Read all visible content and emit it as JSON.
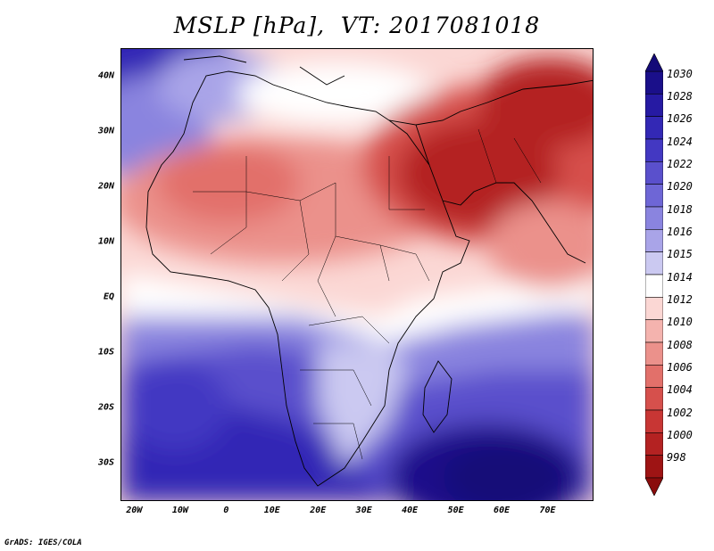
{
  "title": "MSLP [hPa],  VT: 2017081018",
  "credit": "GrADS: IGES/COLA",
  "map": {
    "variable": "MSLP",
    "units": "hPa",
    "valid_time": "2017081018",
    "lon_range": [
      -23,
      80
    ],
    "lat_range": [
      -37,
      45
    ],
    "lat_ticks": [
      {
        "value": 40,
        "label": "40N"
      },
      {
        "value": 30,
        "label": "30N"
      },
      {
        "value": 20,
        "label": "20N"
      },
      {
        "value": 10,
        "label": "10N"
      },
      {
        "value": 0,
        "label": "EQ"
      },
      {
        "value": -10,
        "label": "10S"
      },
      {
        "value": -20,
        "label": "20S"
      },
      {
        "value": -30,
        "label": "30S"
      }
    ],
    "lon_ticks": [
      {
        "value": -20,
        "label": "20W"
      },
      {
        "value": -10,
        "label": "10W"
      },
      {
        "value": 0,
        "label": "0"
      },
      {
        "value": 10,
        "label": "10E"
      },
      {
        "value": 20,
        "label": "20E"
      },
      {
        "value": 30,
        "label": "30E"
      },
      {
        "value": 40,
        "label": "40E"
      },
      {
        "value": 50,
        "label": "50E"
      },
      {
        "value": 60,
        "label": "60E"
      },
      {
        "value": 70,
        "label": "70E"
      }
    ]
  },
  "colorbar": {
    "levels": [
      {
        "label": "1030",
        "color": "#1a0f8a"
      },
      {
        "label": "1028",
        "color": "#261aa3"
      },
      {
        "label": "1026",
        "color": "#3328b5"
      },
      {
        "label": "1024",
        "color": "#4338c2"
      },
      {
        "label": "1022",
        "color": "#5a50cc"
      },
      {
        "label": "1020",
        "color": "#6e66d6"
      },
      {
        "label": "1018",
        "color": "#8a84df"
      },
      {
        "label": "1016",
        "color": "#a9a4e8"
      },
      {
        "label": "1015",
        "color": "#cbc9f1"
      },
      {
        "label": "1014",
        "color": "#ffffff"
      },
      {
        "label": "1012",
        "color": "#fbd7d4"
      },
      {
        "label": "1010",
        "color": "#f4b3ae"
      },
      {
        "label": "1008",
        "color": "#eb918b"
      },
      {
        "label": "1006",
        "color": "#e2706a"
      },
      {
        "label": "1004",
        "color": "#d6504c"
      },
      {
        "label": "1002",
        "color": "#c83634"
      },
      {
        "label": "1000",
        "color": "#b42222"
      },
      {
        "label": "998",
        "color": "#9e1414"
      }
    ]
  }
}
